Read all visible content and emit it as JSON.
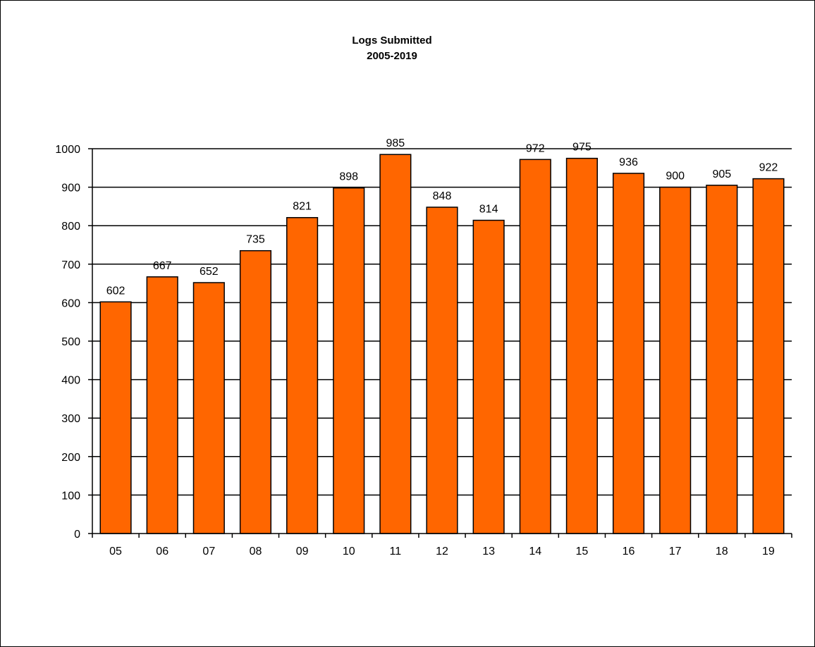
{
  "chart_data": {
    "type": "bar",
    "title": "Logs Submitted",
    "subtitle": "2005-2019",
    "xlabel": "",
    "ylabel": "",
    "categories": [
      "05",
      "06",
      "07",
      "08",
      "09",
      "10",
      "11",
      "12",
      "13",
      "14",
      "15",
      "16",
      "17",
      "18",
      "19"
    ],
    "values": [
      602,
      667,
      652,
      735,
      821,
      898,
      985,
      848,
      814,
      972,
      975,
      936,
      900,
      905,
      922
    ],
    "ylim": [
      0,
      1000
    ],
    "yticks": [
      0,
      100,
      200,
      300,
      400,
      500,
      600,
      700,
      800,
      900,
      1000
    ],
    "grid": true,
    "legend": "none",
    "bar_color": "#ff6600"
  }
}
